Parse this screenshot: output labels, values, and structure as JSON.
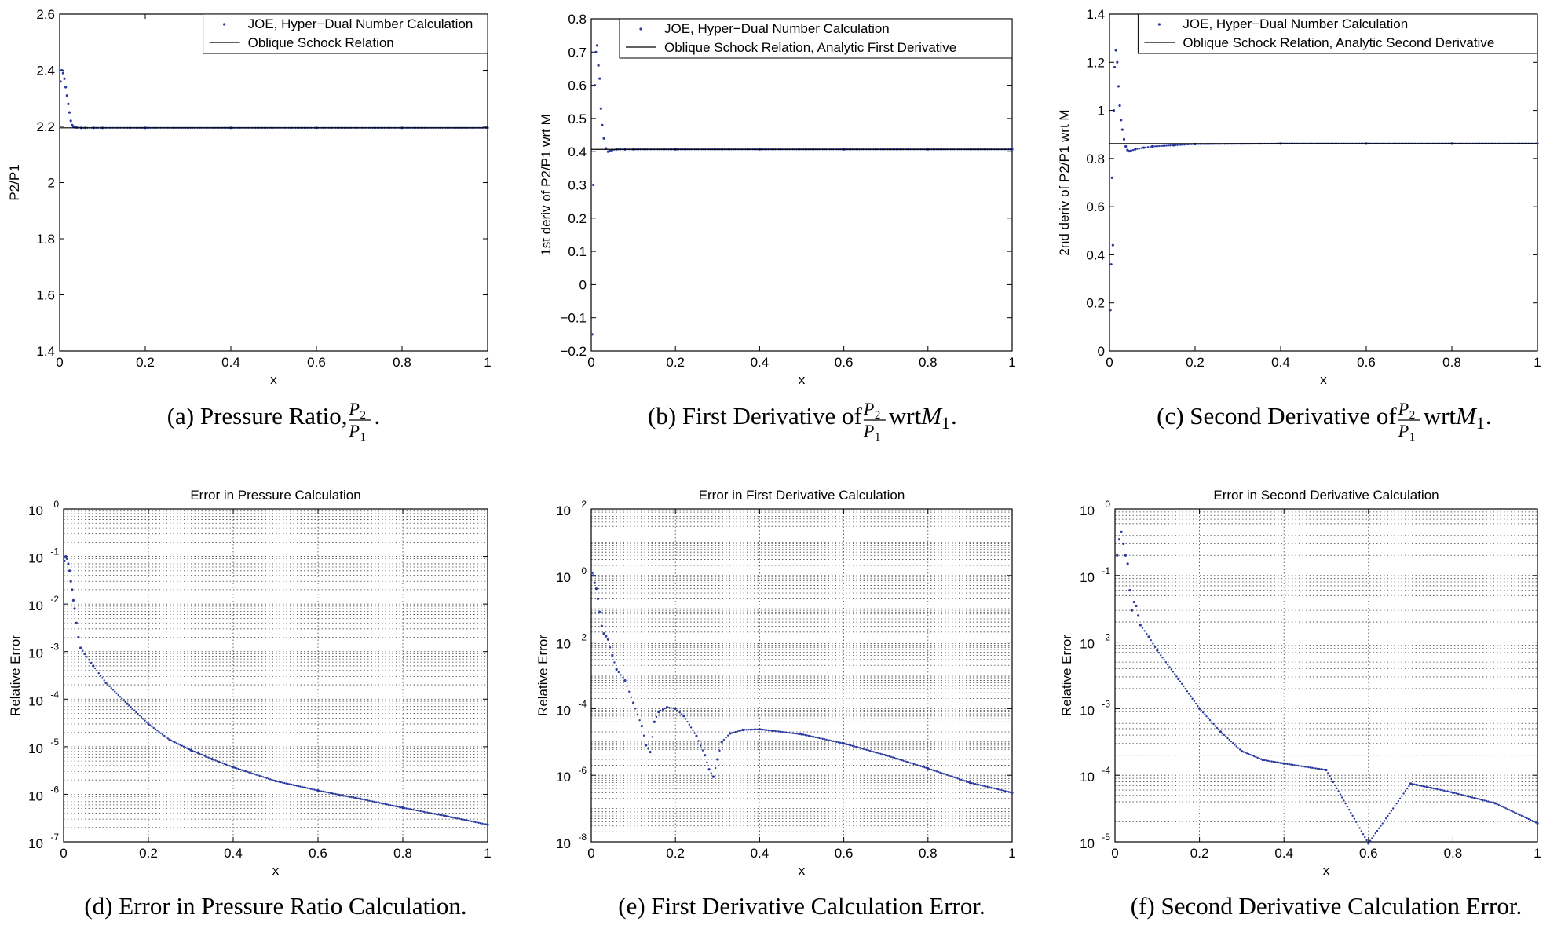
{
  "chart_data": [
    {
      "type": "line",
      "panel": "a",
      "title": "",
      "xlabel": "x",
      "ylabel": "P2/P1",
      "xlim": [
        0,
        1
      ],
      "ylim": [
        1.4,
        2.6
      ],
      "xticks": [
        0,
        0.2,
        0.4,
        0.6,
        0.8,
        1
      ],
      "yticks": [
        1.4,
        1.6,
        1.8,
        2.0,
        2.2,
        2.4,
        2.6
      ],
      "xtick_labels": [
        "0",
        "0.2",
        "0.4",
        "0.6",
        "0.8",
        "1"
      ],
      "ytick_labels": [
        "1.4",
        "1.6",
        "1.8",
        "2",
        "2.2",
        "2.4",
        "2.6"
      ],
      "ylog": false,
      "grid": false,
      "legend_position": "top-right",
      "caption": {
        "tag": "(a)",
        "text": "Pressure Ratio,",
        "num": "P",
        "num_sub": "2",
        "den": "P",
        "den_sub": "1",
        "end": "."
      },
      "series": [
        {
          "name": "JOE, Hyper−Dual Number Calculation",
          "style": "dots",
          "color": "#2a3a9e",
          "x": [
            0.002,
            0.005,
            0.008,
            0.011,
            0.014,
            0.017,
            0.02,
            0.023,
            0.026,
            0.029,
            0.032,
            0.035,
            0.04,
            0.05,
            0.06,
            0.08,
            0.1,
            0.2,
            0.4,
            0.6,
            0.8,
            1.0
          ],
          "y": [
            2.36,
            2.4,
            2.39,
            2.37,
            2.34,
            2.31,
            2.28,
            2.25,
            2.22,
            2.205,
            2.2,
            2.197,
            2.196,
            2.195,
            2.195,
            2.195,
            2.195,
            2.195,
            2.195,
            2.195,
            2.195,
            2.195
          ]
        },
        {
          "name": "Oblique Schock Relation",
          "style": "line",
          "color": "#000000",
          "x": [
            0,
            1
          ],
          "y": [
            2.195,
            2.195
          ]
        }
      ]
    },
    {
      "type": "line",
      "panel": "b",
      "title": "",
      "xlabel": "x",
      "ylabel": "1st deriv of P2/P1 wrt M",
      "xlim": [
        0,
        1
      ],
      "ylim": [
        -0.2,
        0.8
      ],
      "xticks": [
        0,
        0.2,
        0.4,
        0.6,
        0.8,
        1
      ],
      "yticks": [
        -0.2,
        -0.1,
        0,
        0.1,
        0.2,
        0.3,
        0.4,
        0.5,
        0.6,
        0.7,
        0.8
      ],
      "xtick_labels": [
        "0",
        "0.2",
        "0.4",
        "0.6",
        "0.8",
        "1"
      ],
      "ytick_labels": [
        "−0.2",
        "−0.1",
        "0",
        "0.1",
        "0.2",
        "0.3",
        "0.4",
        "0.5",
        "0.6",
        "0.7",
        "0.8"
      ],
      "ylog": false,
      "grid": false,
      "legend_position": "top-right",
      "caption": {
        "tag": "(b)",
        "text": "First Derivative of",
        "num": "P",
        "num_sub": "2",
        "den": "P",
        "den_sub": "1",
        "end": "wrt",
        "var": "M",
        "var_sub": "1",
        "end2": "."
      },
      "series": [
        {
          "name": "JOE, Hyper−Dual Number Calculation",
          "style": "dots",
          "color": "#2a3a9e",
          "x": [
            0.002,
            0.005,
            0.008,
            0.011,
            0.014,
            0.017,
            0.02,
            0.023,
            0.026,
            0.03,
            0.035,
            0.04,
            0.045,
            0.05,
            0.06,
            0.08,
            0.1,
            0.2,
            0.4,
            0.6,
            0.8,
            1.0
          ],
          "y": [
            -0.15,
            0.3,
            0.6,
            0.7,
            0.72,
            0.66,
            0.62,
            0.53,
            0.48,
            0.44,
            0.41,
            0.4,
            0.402,
            0.405,
            0.407,
            0.407,
            0.407,
            0.407,
            0.407,
            0.407,
            0.407,
            0.407
          ]
        },
        {
          "name": "Oblique Schock Relation, Analytic First Derivative",
          "style": "line",
          "color": "#000000",
          "x": [
            0,
            1
          ],
          "y": [
            0.407,
            0.407
          ]
        }
      ]
    },
    {
      "type": "line",
      "panel": "c",
      "title": "",
      "xlabel": "x",
      "ylabel": "2nd deriv of P2/P1 wrt M",
      "xlim": [
        0,
        1
      ],
      "ylim": [
        0,
        1.4
      ],
      "xticks": [
        0,
        0.2,
        0.4,
        0.6,
        0.8,
        1
      ],
      "yticks": [
        0,
        0.2,
        0.4,
        0.6,
        0.8,
        1.0,
        1.2,
        1.4
      ],
      "xtick_labels": [
        "0",
        "0.2",
        "0.4",
        "0.6",
        "0.8",
        "1"
      ],
      "ytick_labels": [
        "0",
        "0.2",
        "0.4",
        "0.6",
        "0.8",
        "1",
        "1.2",
        "1.4"
      ],
      "ylog": false,
      "grid": false,
      "legend_position": "top-right",
      "caption": {
        "tag": "(c)",
        "text": "Second Derivative of",
        "num": "P",
        "num_sub": "2",
        "den": "P",
        "den_sub": "1",
        "end": "wrt",
        "var": "M",
        "var_sub": "1",
        "end2": "."
      },
      "series": [
        {
          "name": "JOE, Hyper−Dual Number Calculation",
          "style": "dots",
          "color": "#2a3a9e",
          "x": [
            0.002,
            0.004,
            0.006,
            0.008,
            0.01,
            0.012,
            0.015,
            0.018,
            0.021,
            0.024,
            0.027,
            0.03,
            0.034,
            0.038,
            0.042,
            0.046,
            0.05,
            0.06,
            0.08,
            0.1,
            0.15,
            0.2,
            0.4,
            0.6,
            0.8,
            1.0
          ],
          "y": [
            0.17,
            0.36,
            0.72,
            0.44,
            1.0,
            1.18,
            1.25,
            1.2,
            1.1,
            1.02,
            0.96,
            0.92,
            0.88,
            0.85,
            0.835,
            0.83,
            0.832,
            0.838,
            0.845,
            0.85,
            0.855,
            0.86,
            0.862,
            0.862,
            0.862,
            0.862
          ]
        },
        {
          "name": "Oblique Schock Relation, Analytic Second Derivative",
          "style": "line",
          "color": "#000000",
          "x": [
            0,
            1
          ],
          "y": [
            0.862,
            0.862
          ]
        }
      ]
    },
    {
      "type": "scatter",
      "panel": "d",
      "title": "Error in Pressure Calculation",
      "xlabel": "x",
      "ylabel": "Relative Error",
      "xlim": [
        0,
        1
      ],
      "ylim": [
        1e-07,
        1
      ],
      "xticks": [
        0,
        0.2,
        0.4,
        0.6,
        0.8,
        1
      ],
      "xtick_labels": [
        "0",
        "0.2",
        "0.4",
        "0.6",
        "0.8",
        "1"
      ],
      "ytick_labels": [
        {
          "b": "10",
          "e": "-7"
        },
        {
          "b": "10",
          "e": "-6"
        },
        {
          "b": "10",
          "e": "-5"
        },
        {
          "b": "10",
          "e": "-4"
        },
        {
          "b": "10",
          "e": "-3"
        },
        {
          "b": "10",
          "e": "-2"
        },
        {
          "b": "10",
          "e": "-1"
        },
        {
          "b": "10",
          "e": "0"
        }
      ],
      "ylog": true,
      "grid": true,
      "caption": {
        "tag": "(d)",
        "text": "Error in Pressure Ratio Calculation."
      },
      "series": [
        {
          "name": "",
          "style": "dots",
          "color": "#2a3a9e",
          "x": [
            0.002,
            0.005,
            0.008,
            0.011,
            0.014,
            0.017,
            0.02,
            0.023,
            0.026,
            0.03,
            0.035,
            0.04,
            0.05,
            0.07,
            0.1,
            0.15,
            0.2,
            0.25,
            0.3,
            0.35,
            0.4,
            0.5,
            0.6,
            0.7,
            0.8,
            0.9,
            1.0
          ],
          "y": [
            0.08,
            0.1,
            0.09,
            0.07,
            0.05,
            0.03,
            0.02,
            0.012,
            0.008,
            0.004,
            0.002,
            0.0012,
            0.0009,
            0.0005,
            0.00022,
            8e-05,
            3e-05,
            1.4e-05,
            8.5e-06,
            5.5e-06,
            3.7e-06,
            1.9e-06,
            1.2e-06,
            8e-07,
            5.2e-07,
            3.5e-07,
            2.3e-07
          ]
        }
      ]
    },
    {
      "type": "scatter",
      "panel": "e",
      "title": "Error in First Derivative Calculation",
      "xlabel": "x",
      "ylabel": "Relative Error",
      "xlim": [
        0,
        1
      ],
      "ylim": [
        1e-08,
        100
      ],
      "xticks": [
        0,
        0.2,
        0.4,
        0.6,
        0.8,
        1
      ],
      "xtick_labels": [
        "0",
        "0.2",
        "0.4",
        "0.6",
        "0.8",
        "1"
      ],
      "ytick_labels": [
        {
          "b": "10",
          "e": "-8"
        },
        {
          "b": "10",
          "e": "-6"
        },
        {
          "b": "10",
          "e": "-4"
        },
        {
          "b": "10",
          "e": "-2"
        },
        {
          "b": "10",
          "e": "0"
        },
        {
          "b": "10",
          "e": "2"
        }
      ],
      "ylog": true,
      "grid": true,
      "caption": {
        "tag": "(e)",
        "text": "First Derivative Calculation Error."
      },
      "series": [
        {
          "name": "",
          "style": "dots",
          "color": "#2a3a9e",
          "x": [
            0.002,
            0.005,
            0.008,
            0.012,
            0.016,
            0.02,
            0.025,
            0.03,
            0.035,
            0.04,
            0.05,
            0.06,
            0.08,
            0.1,
            0.12,
            0.13,
            0.14,
            0.15,
            0.16,
            0.18,
            0.2,
            0.22,
            0.25,
            0.27,
            0.28,
            0.29,
            0.3,
            0.31,
            0.33,
            0.36,
            0.4,
            0.5,
            0.6,
            0.7,
            0.8,
            0.9,
            1.0
          ],
          "y": [
            1.2,
            1.0,
            0.6,
            0.4,
            0.2,
            0.08,
            0.03,
            0.018,
            0.015,
            0.012,
            0.004,
            0.0015,
            0.0007,
            0.00015,
            3e-05,
            8e-06,
            5e-06,
            4e-05,
            8e-05,
            0.00011,
            0.0001,
            6e-05,
            1.5e-05,
            4e-06,
            1.5e-06,
            9e-07,
            3e-06,
            1e-05,
            1.8e-05,
            2.3e-05,
            2.4e-05,
            1.7e-05,
            9e-06,
            4e-06,
            1.6e-06,
            6e-07,
            3e-07
          ]
        }
      ]
    },
    {
      "type": "scatter",
      "panel": "f",
      "title": "Error in Second Derivative Calculation",
      "xlabel": "x",
      "ylabel": "Relative Error",
      "xlim": [
        0,
        1
      ],
      "ylim": [
        1e-05,
        1
      ],
      "xticks": [
        0,
        0.2,
        0.4,
        0.6,
        0.8,
        1
      ],
      "xtick_labels": [
        "0",
        "0.2",
        "0.4",
        "0.6",
        "0.8",
        "1"
      ],
      "ytick_labels": [
        {
          "b": "10",
          "e": "-5"
        },
        {
          "b": "10",
          "e": "-4"
        },
        {
          "b": "10",
          "e": "-3"
        },
        {
          "b": "10",
          "e": "-2"
        },
        {
          "b": "10",
          "e": "-1"
        },
        {
          "b": "10",
          "e": "0"
        }
      ],
      "ylog": true,
      "grid": true,
      "caption": {
        "tag": "(f)",
        "text": "Second Derivative Calculation Error."
      },
      "series": [
        {
          "name": "",
          "style": "dots",
          "color": "#2a3a9e",
          "x": [
            0.005,
            0.01,
            0.015,
            0.02,
            0.025,
            0.03,
            0.035,
            0.04,
            0.045,
            0.05,
            0.055,
            0.06,
            0.08,
            0.1,
            0.15,
            0.2,
            0.25,
            0.3,
            0.35,
            0.4,
            0.5,
            0.6,
            0.7,
            0.8,
            0.9,
            1.0
          ],
          "y": [
            0.2,
            0.35,
            0.45,
            0.3,
            0.2,
            0.15,
            0.06,
            0.03,
            0.04,
            0.035,
            0.025,
            0.018,
            0.012,
            0.0075,
            0.0028,
            0.001,
            0.00045,
            0.00023,
            0.00017,
            0.00015,
            0.00012,
            9.5e-06,
            7.5e-05,
            5.5e-05,
            3.8e-05,
            1.9e-05
          ]
        }
      ]
    }
  ]
}
